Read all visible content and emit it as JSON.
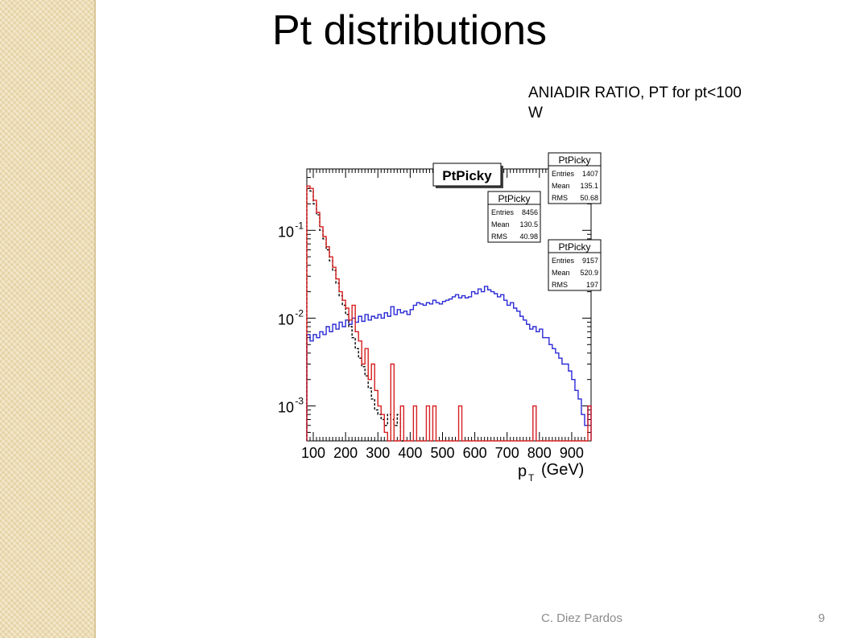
{
  "slide": {
    "title": "Pt distributions",
    "subtitle": "ANIADIR  RATIO, PT for pt<100 W",
    "author": "C. Diez Pardos",
    "page": "9",
    "sidebar_color": "#ecdcb2"
  },
  "chart_data": {
    "type": "line",
    "title": "PtPicky",
    "xlabel": "p",
    "xlabel_sub": "T",
    "xlabel_unit": "(GeV)",
    "ylabel": "",
    "xlim": [
      80,
      960
    ],
    "ylim": [
      0.0004,
      0.5
    ],
    "log_y": true,
    "grid": false,
    "x_ticks": [
      "100",
      "200",
      "300",
      "400",
      "500",
      "600",
      "700",
      "800",
      "900"
    ],
    "y_ticks": [
      {
        "base": "10",
        "exp": "-1",
        "value": 0.1
      },
      {
        "base": "10",
        "exp": "-2",
        "value": 0.01
      },
      {
        "base": "10",
        "exp": "-3",
        "value": 0.001
      }
    ],
    "bin_width": 10,
    "stat_boxes": [
      {
        "name": "PtPicky",
        "color": "#d62020",
        "rows": [
          {
            "label": "Entries",
            "value": "1407"
          },
          {
            "label": "Mean",
            "value": "135.1"
          },
          {
            "label": "RMS",
            "value": "50.68"
          }
        ]
      },
      {
        "name": "PtPicky",
        "color": "#000000",
        "rows": [
          {
            "label": "Entries",
            "value": "8456"
          },
          {
            "label": "Mean",
            "value": "130.5"
          },
          {
            "label": "RMS",
            "value": "40.98"
          }
        ]
      },
      {
        "name": "PtPicky",
        "color": "#2a2ad6",
        "rows": [
          {
            "label": "Entries",
            "value": "9157"
          },
          {
            "label": "Mean",
            "value": "520.9"
          },
          {
            "label": "RMS",
            "value": "197"
          }
        ]
      }
    ],
    "series": [
      {
        "color": "#2a2ad6",
        "style": "solid",
        "x": [
          80,
          90,
          100,
          110,
          120,
          130,
          140,
          150,
          160,
          170,
          180,
          190,
          200,
          210,
          220,
          230,
          240,
          250,
          260,
          270,
          280,
          290,
          300,
          310,
          320,
          330,
          340,
          350,
          360,
          370,
          380,
          390,
          400,
          410,
          420,
          430,
          440,
          450,
          460,
          470,
          480,
          490,
          500,
          510,
          520,
          530,
          540,
          550,
          560,
          570,
          580,
          590,
          600,
          610,
          620,
          630,
          640,
          650,
          660,
          670,
          680,
          690,
          700,
          710,
          720,
          730,
          740,
          750,
          760,
          770,
          780,
          790,
          800,
          810,
          820,
          830,
          840,
          850,
          860,
          870,
          880,
          890,
          900,
          910,
          920,
          930,
          940,
          950
        ],
        "y": [
          0.0065,
          0.0055,
          0.0065,
          0.006,
          0.007,
          0.0065,
          0.008,
          0.007,
          0.0085,
          0.0075,
          0.009,
          0.008,
          0.0095,
          0.0085,
          0.01,
          0.009,
          0.0105,
          0.0092,
          0.011,
          0.0095,
          0.0105,
          0.01,
          0.011,
          0.01,
          0.0115,
          0.0105,
          0.0135,
          0.011,
          0.0125,
          0.0115,
          0.012,
          0.011,
          0.0125,
          0.014,
          0.015,
          0.0145,
          0.014,
          0.015,
          0.0145,
          0.016,
          0.015,
          0.0145,
          0.0155,
          0.016,
          0.0165,
          0.0175,
          0.0185,
          0.017,
          0.018,
          0.017,
          0.0175,
          0.02,
          0.019,
          0.0215,
          0.02,
          0.023,
          0.021,
          0.02,
          0.019,
          0.0175,
          0.0185,
          0.016,
          0.014,
          0.015,
          0.013,
          0.012,
          0.0105,
          0.0095,
          0.0085,
          0.0075,
          0.008,
          0.007,
          0.0075,
          0.006,
          0.006,
          0.005,
          0.0045,
          0.004,
          0.0035,
          0.003,
          0.003,
          0.0025,
          0.002,
          0.0015,
          0.0012,
          0.0008,
          0.0006,
          0.001
        ]
      },
      {
        "color": "#000000",
        "style": "dashed",
        "x": [
          80,
          90,
          100,
          110,
          120,
          130,
          140,
          150,
          160,
          170,
          180,
          190,
          200,
          210,
          220,
          230,
          240,
          250,
          260,
          270,
          280,
          290,
          300,
          310,
          320,
          330,
          340,
          350,
          360,
          370
        ],
        "y": [
          0.3,
          0.28,
          0.2,
          0.15,
          0.1,
          0.08,
          0.06,
          0.045,
          0.035,
          0.025,
          0.018,
          0.014,
          0.011,
          0.008,
          0.006,
          0.0045,
          0.0035,
          0.0028,
          0.0022,
          0.0016,
          0.0012,
          0.0009,
          0.0008,
          0.0007,
          0.0006,
          0.0008,
          0.0007,
          0.0006,
          0.0008,
          0.0004
        ]
      },
      {
        "color": "#d62020",
        "style": "solid",
        "x": [
          80,
          90,
          100,
          110,
          120,
          130,
          140,
          150,
          160,
          170,
          180,
          190,
          200,
          210,
          220,
          230,
          240,
          250,
          260,
          270,
          280,
          290,
          300,
          310,
          320,
          330,
          340,
          350,
          360,
          370,
          380,
          390,
          400,
          410,
          420,
          430,
          440,
          450,
          460,
          470,
          480,
          490,
          500,
          510,
          520,
          530,
          540,
          550,
          560,
          570,
          580,
          590,
          600,
          610,
          620,
          630,
          640,
          650,
          660,
          670,
          680,
          690,
          700,
          710,
          720,
          730,
          740,
          750,
          760,
          770,
          780,
          790,
          800,
          810,
          820,
          830,
          840,
          850,
          860,
          870,
          880,
          890,
          900,
          910,
          920,
          930,
          940,
          950
        ],
        "y": [
          0.32,
          0.3,
          0.22,
          0.16,
          0.11,
          0.085,
          0.065,
          0.05,
          0.038,
          0.028,
          0.02,
          0.016,
          0.013,
          0.0095,
          0.014,
          0.007,
          0.0055,
          0.003,
          0.0045,
          0.002,
          0.003,
          0.0015,
          0.001,
          0.0008,
          0.0005,
          0.0004,
          0.003,
          0.0004,
          0.0004,
          0.001,
          0.0004,
          0.0004,
          0.0004,
          0.001,
          0.0004,
          0.0004,
          0.0004,
          0.001,
          0.0004,
          0.001,
          0.0004,
          0.0004,
          0.0004,
          0.0004,
          0.0004,
          0.0004,
          0.0004,
          0.001,
          0.0004,
          0.0004,
          0.0004,
          0.0004,
          0.0004,
          0.0004,
          0.0004,
          0.0004,
          0.0004,
          0.0004,
          0.0004,
          0.0004,
          0.0004,
          0.0004,
          0.0004,
          0.0004,
          0.0004,
          0.0004,
          0.0004,
          0.0004,
          0.0004,
          0.0004,
          0.001,
          0.0004,
          0.0004,
          0.0004,
          0.0004,
          0.0004,
          0.0004,
          0.0004,
          0.0004,
          0.0004,
          0.0004,
          0.0004,
          0.0004,
          0.0004,
          0.0004,
          0.0004,
          0.0004,
          0.001
        ]
      }
    ]
  }
}
